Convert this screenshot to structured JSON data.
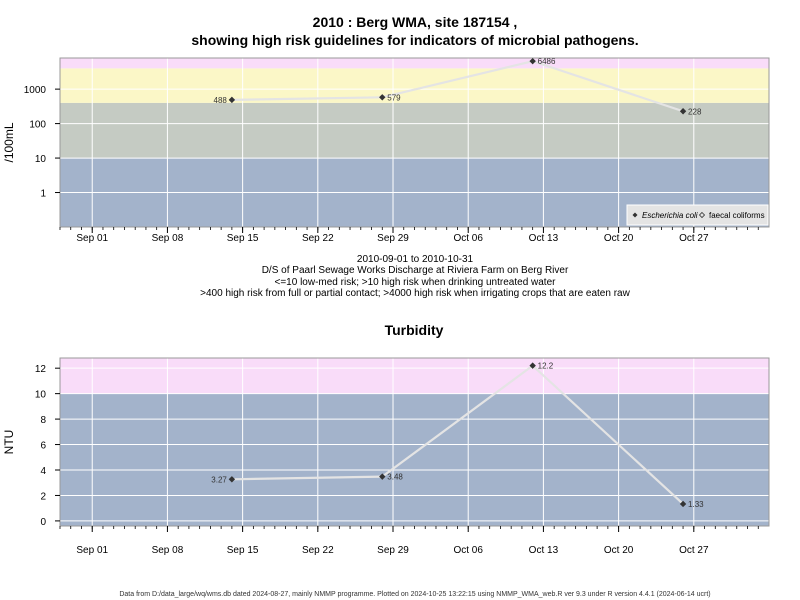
{
  "chart_data": [
    {
      "type": "line",
      "title_line1": "2010 : Berg WMA, site 187154 ,",
      "title_line2": "showing high risk guidelines for indicators of microbial pathogens.",
      "ylabel": "/100mL",
      "yscale": "log",
      "yticks": [
        "1",
        "10",
        "100",
        "1000"
      ],
      "ylim": [
        0.1,
        8000
      ],
      "xticks": [
        "Sep 01",
        "Sep 08",
        "Sep 15",
        "Sep 22",
        "Sep 29",
        "Oct 06",
        "Oct 13",
        "Oct 20",
        "Oct 27"
      ],
      "xlim": [
        "2010-08-29",
        "2010-11-03"
      ],
      "bands": [
        {
          "from": 0.1,
          "to": 10,
          "color": "#a3b3cb"
        },
        {
          "from": 10,
          "to": 400,
          "color": "#c5cbc3"
        },
        {
          "from": 400,
          "to": 4000,
          "color": "#fbf7c7"
        },
        {
          "from": 4000,
          "to": 8000,
          "color": "#f9dcf9"
        }
      ],
      "series": [
        {
          "name": "Escherichia coli",
          "marker": "filled-diamond",
          "color": "#333333",
          "line_color": "#e4e4e4",
          "x": [
            "2010-09-14",
            "2010-09-28",
            "2010-10-12",
            "2010-10-26"
          ],
          "values": [
            488,
            579,
            6486,
            228
          ],
          "labels": [
            "488",
            "579",
            "6486",
            "228"
          ]
        }
      ],
      "legend": {
        "position": "bottom-right",
        "items": [
          {
            "label": "Escherichia coli",
            "marker": "filled-diamond"
          },
          {
            "label": "faecal coliforms",
            "marker": "open-diamond"
          }
        ]
      },
      "grid": true
    },
    {
      "type": "line",
      "title": "Turbidity",
      "ylabel": "NTU",
      "yscale": "linear",
      "yticks": [
        "0",
        "2",
        "4",
        "6",
        "8",
        "10",
        "12"
      ],
      "ylim": [
        -0.4,
        12.8
      ],
      "xticks": [
        "Sep 01",
        "Sep 08",
        "Sep 15",
        "Sep 22",
        "Sep 29",
        "Oct 06",
        "Oct 13",
        "Oct 20",
        "Oct 27"
      ],
      "xlim": [
        "2010-08-29",
        "2010-11-03"
      ],
      "bands": [
        {
          "from": -0.4,
          "to": 10,
          "color": "#a3b3cb"
        },
        {
          "from": 10,
          "to": 12.8,
          "color": "#f9dcf9"
        }
      ],
      "series": [
        {
          "marker": "filled-diamond",
          "color": "#333333",
          "line_color": "#e4e4e4",
          "x": [
            "2010-09-14",
            "2010-09-28",
            "2010-10-12",
            "2010-10-26"
          ],
          "values": [
            3.27,
            3.48,
            12.2,
            1.33
          ],
          "labels": [
            "3.27",
            "3.48",
            "12.2",
            "1.33"
          ]
        }
      ],
      "grid": true
    }
  ],
  "caption": {
    "line1": "2010-09-01 to 2010-10-31",
    "line2": "D/S of Paarl Sewage Works Discharge at Riviera Farm on Berg River",
    "line3": "<=10 low-med risk; >10 high risk when drinking untreated water",
    "line4": ">400 high risk from full or partial contact; >4000 high risk when irrigating crops that are eaten raw"
  },
  "footer": "Data from D:/data_large/wq/wms.db dated 2024-08-27, mainly NMMP programme. Plotted on 2024-10-25 13:22:15 using NMMP_WMA_web.R ver 9.3 under R version 4.4.1 (2024-06-14 ucrt)"
}
